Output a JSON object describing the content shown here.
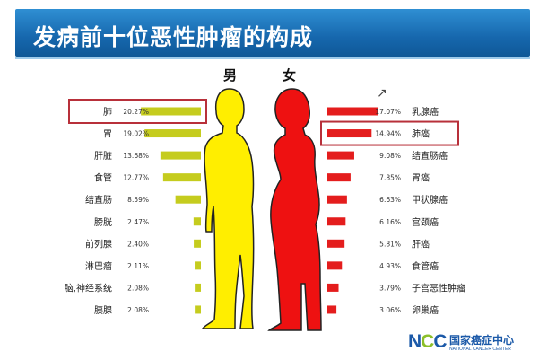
{
  "title": "发病前十位恶性肿瘤的构成",
  "male_label": "男",
  "female_label": "女",
  "logo": {
    "mark": "NCC",
    "cn": "国家癌症中心",
    "en": "NATIONAL CANCER CENTER"
  },
  "colors": {
    "male_bar": "#c5cc1e",
    "female_bar": "#e41d1d",
    "male_body": "#ffee00",
    "female_body": "#ee1111",
    "highlight": "#b8303a",
    "title_bg": "#1d6fb8"
  },
  "chart_data": [
    {
      "type": "bar",
      "name": "男",
      "categories": [
        "肺",
        "胃",
        "肝脏",
        "食管",
        "结直肠",
        "膀胱",
        "前列腺",
        "淋巴瘤",
        "脑,神经系统",
        "胰腺"
      ],
      "values": [
        20.27,
        19.02,
        13.68,
        12.77,
        8.59,
        2.47,
        2.4,
        2.11,
        2.08,
        2.08
      ],
      "value_labels": [
        "20.27%",
        "19.02%",
        "13.68%",
        "12.77%",
        "8.59%",
        "2.47%",
        "2.40%",
        "2.11%",
        "2.08%",
        "2.08%"
      ],
      "highlighted": "肺"
    },
    {
      "type": "bar",
      "name": "女",
      "categories": [
        "乳腺癌",
        "肺癌",
        "结直肠癌",
        "胃癌",
        "甲状腺癌",
        "宫颈癌",
        "肝癌",
        "食管癌",
        "子宫恶性肿瘤",
        "卵巢癌"
      ],
      "values": [
        17.07,
        14.94,
        9.08,
        7.85,
        6.63,
        6.16,
        5.81,
        4.93,
        3.79,
        3.06
      ],
      "value_labels": [
        "17.07%",
        "14.94%",
        "9.08%",
        "7.85%",
        "6.63%",
        "6.16%",
        "5.81%",
        "4.93%",
        "3.79%",
        "3.06%"
      ],
      "highlighted": "肺癌"
    }
  ]
}
